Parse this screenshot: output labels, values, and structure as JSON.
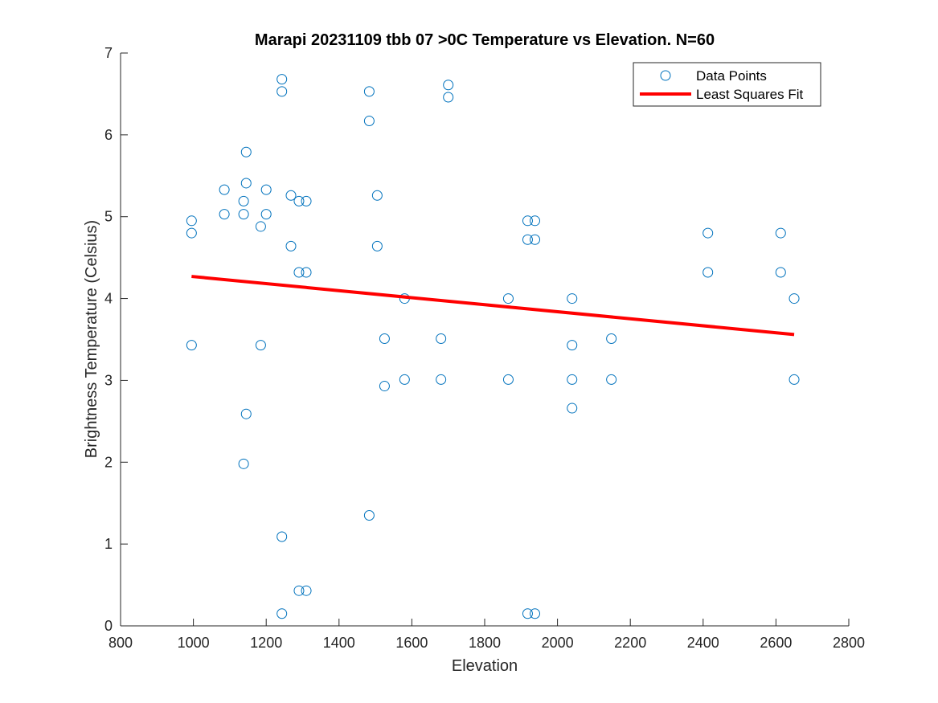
{
  "chart_data": {
    "type": "scatter",
    "title": "Marapi 20231109 tbb 07 >0C Temperature vs Elevation. N=60",
    "xlabel": "Elevation",
    "ylabel": "Brightness Temperature (Celsius)",
    "xlim": [
      800,
      2800
    ],
    "ylim": [
      0,
      7
    ],
    "xticks": [
      800,
      1000,
      1200,
      1400,
      1600,
      1800,
      2000,
      2200,
      2400,
      2600,
      2800
    ],
    "yticks": [
      0,
      1,
      2,
      3,
      4,
      5,
      6,
      7
    ],
    "grid": false,
    "legend_position": "top-right",
    "series": [
      {
        "name": "Data Points",
        "kind": "scatter",
        "marker": "open-circle",
        "color": "#0072BD",
        "points": [
          [
            995,
            4.95
          ],
          [
            995,
            4.8
          ],
          [
            995,
            3.43
          ],
          [
            1085,
            5.33
          ],
          [
            1085,
            5.03
          ],
          [
            1138,
            5.19
          ],
          [
            1138,
            5.03
          ],
          [
            1138,
            1.98
          ],
          [
            1145,
            5.79
          ],
          [
            1145,
            5.41
          ],
          [
            1145,
            2.59
          ],
          [
            1185,
            4.88
          ],
          [
            1185,
            3.43
          ],
          [
            1200,
            5.33
          ],
          [
            1200,
            5.03
          ],
          [
            1243,
            6.68
          ],
          [
            1243,
            6.53
          ],
          [
            1243,
            1.09
          ],
          [
            1243,
            0.15
          ],
          [
            1268,
            5.26
          ],
          [
            1268,
            4.64
          ],
          [
            1290,
            5.19
          ],
          [
            1290,
            4.32
          ],
          [
            1290,
            0.43
          ],
          [
            1310,
            5.19
          ],
          [
            1310,
            4.32
          ],
          [
            1310,
            0.43
          ],
          [
            1483,
            6.53
          ],
          [
            1483,
            6.17
          ],
          [
            1483,
            1.35
          ],
          [
            1505,
            5.26
          ],
          [
            1505,
            4.64
          ],
          [
            1525,
            3.51
          ],
          [
            1525,
            2.93
          ],
          [
            1580,
            4.0
          ],
          [
            1580,
            3.01
          ],
          [
            1680,
            3.51
          ],
          [
            1680,
            3.01
          ],
          [
            1700,
            6.61
          ],
          [
            1700,
            6.46
          ],
          [
            1865,
            4.0
          ],
          [
            1865,
            3.01
          ],
          [
            1918,
            4.95
          ],
          [
            1918,
            4.72
          ],
          [
            1918,
            0.15
          ],
          [
            1938,
            4.95
          ],
          [
            1938,
            4.72
          ],
          [
            1938,
            0.15
          ],
          [
            2040,
            4.0
          ],
          [
            2040,
            3.43
          ],
          [
            2040,
            3.01
          ],
          [
            2040,
            2.66
          ],
          [
            2148,
            3.51
          ],
          [
            2148,
            3.01
          ],
          [
            2413,
            4.8
          ],
          [
            2413,
            4.32
          ],
          [
            2613,
            4.8
          ],
          [
            2613,
            4.32
          ],
          [
            2650,
            4.0
          ],
          [
            2650,
            3.01
          ]
        ]
      },
      {
        "name": "Least Squares Fit",
        "kind": "line",
        "color": "#FF0000",
        "points": [
          [
            995,
            4.27
          ],
          [
            2650,
            3.56
          ]
        ]
      }
    ]
  }
}
